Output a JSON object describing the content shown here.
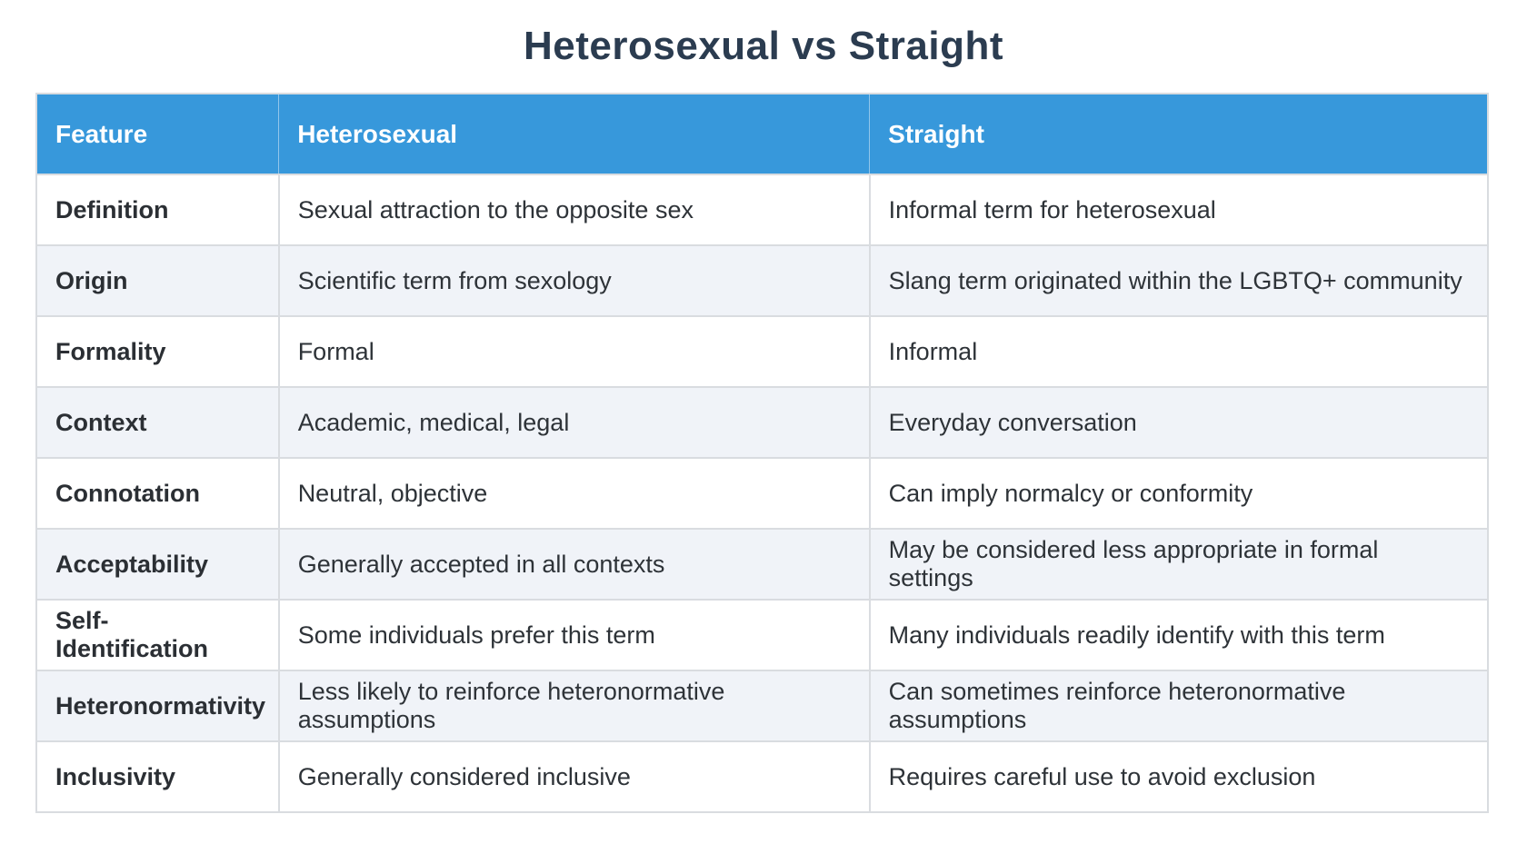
{
  "page": {
    "title": "Heterosexual vs Straight"
  },
  "table": {
    "columns": [
      "Feature",
      "Heterosexual",
      "Straight"
    ],
    "rows": [
      {
        "feature": "Definition",
        "heterosexual": "Sexual attraction to the opposite sex",
        "straight": "Informal term for heterosexual"
      },
      {
        "feature": "Origin",
        "heterosexual": "Scientific term from sexology",
        "straight": "Slang term originated within the LGBTQ+ community"
      },
      {
        "feature": "Formality",
        "heterosexual": "Formal",
        "straight": "Informal"
      },
      {
        "feature": "Context",
        "heterosexual": "Academic, medical, legal",
        "straight": "Everyday conversation"
      },
      {
        "feature": "Connotation",
        "heterosexual": "Neutral, objective",
        "straight": "Can imply normalcy or conformity"
      },
      {
        "feature": "Acceptability",
        "heterosexual": "Generally accepted in all contexts",
        "straight": "May be considered less appropriate in formal settings"
      },
      {
        "feature": "Self-Identification",
        "heterosexual": "Some individuals prefer this term",
        "straight": "Many individuals readily identify with this term"
      },
      {
        "feature": "Heteronormativity",
        "heterosexual": "Less likely to reinforce heteronormative assumptions",
        "straight": "Can sometimes reinforce heteronormative assumptions"
      },
      {
        "feature": "Inclusivity",
        "heterosexual": "Generally considered inclusive",
        "straight": "Requires careful use to avoid exclusion"
      }
    ]
  },
  "colors": {
    "header_bg": "#3798db",
    "header_text": "#ffffff",
    "title_text": "#2b3c50",
    "row_bg": "#ffffff",
    "row_alt_bg": "#f0f3f8",
    "border": "#d9dce0",
    "body_text": "#2e3338",
    "label_text": "#2b2f34"
  }
}
